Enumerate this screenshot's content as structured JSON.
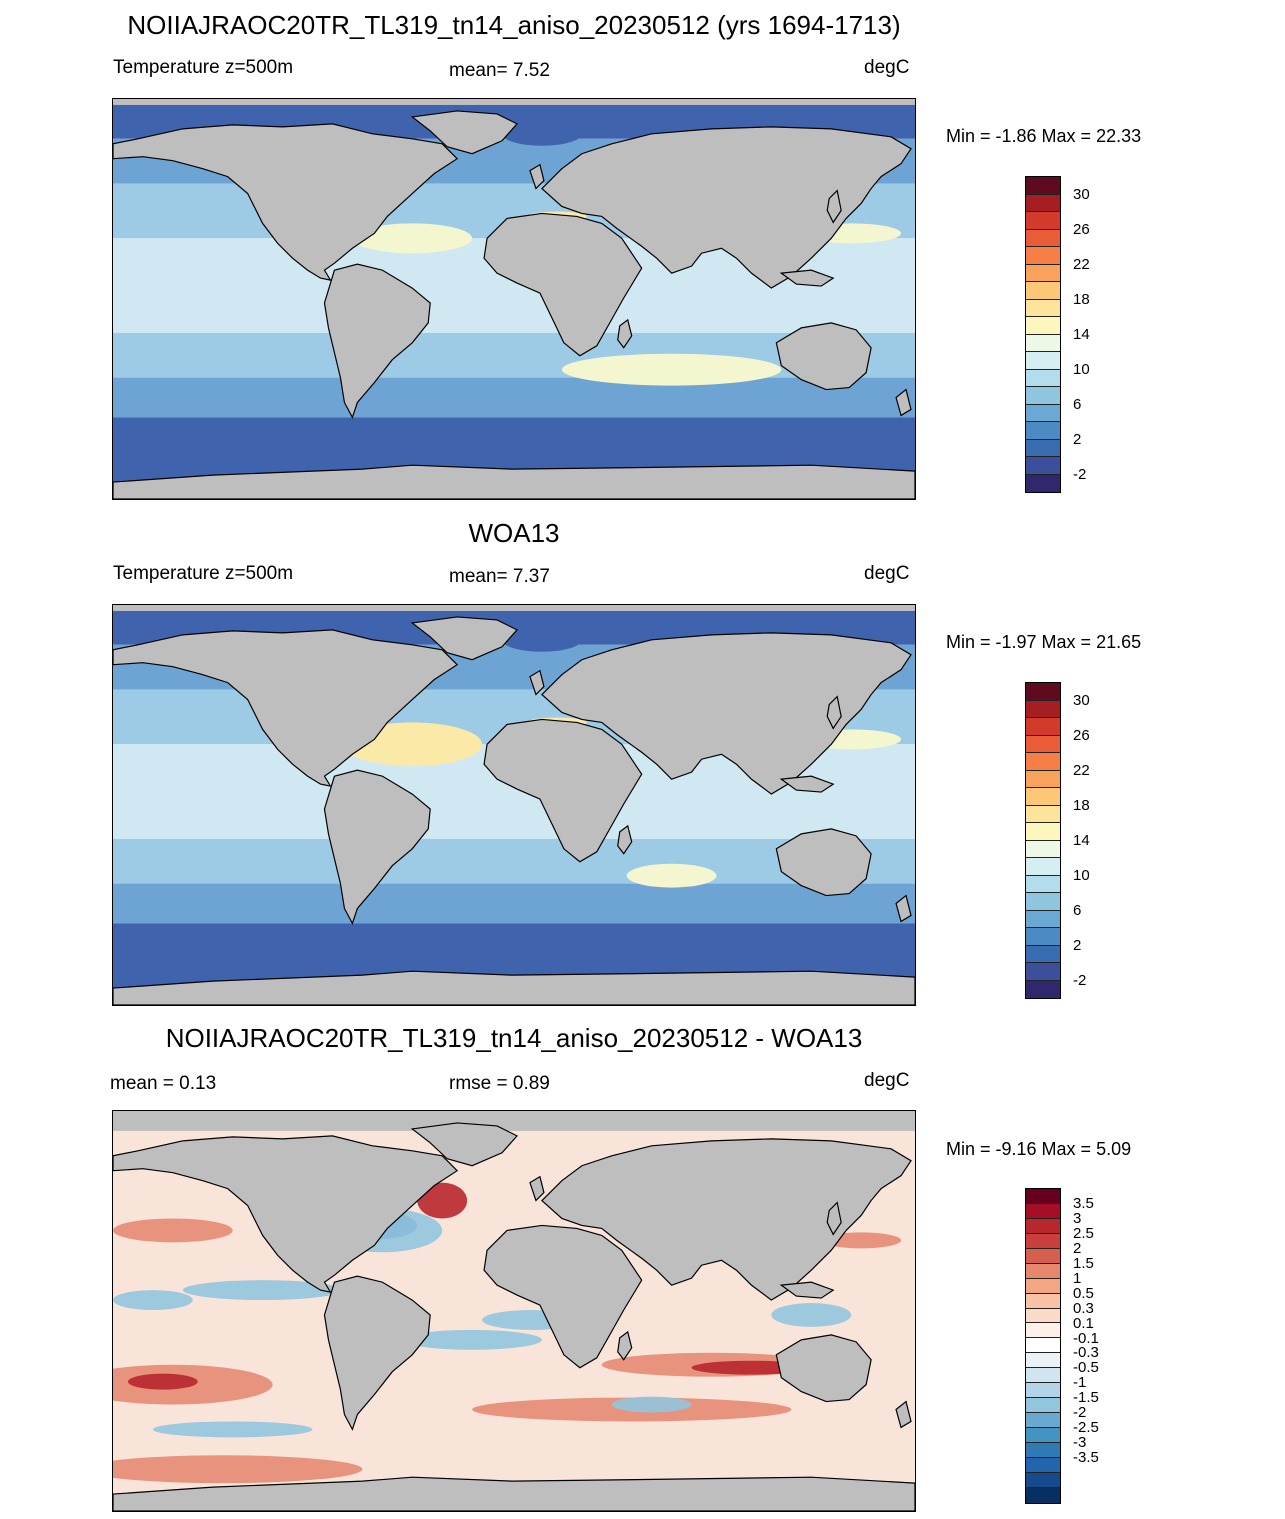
{
  "panels": [
    {
      "title": "NOIIAJRAOC20TR_TL319_tn14_aniso_20230512 (yrs 1694-1713)",
      "left_label": "Temperature z=500m",
      "center_label": "mean=   7.52",
      "unit": "degC",
      "minmax": "Min =  -1.86 Max =  22.33",
      "colorbar": {
        "colors": [
          "#5e0a1f",
          "#a41e22",
          "#d23a2a",
          "#ea5b37",
          "#f57f45",
          "#f9a25b",
          "#fcc777",
          "#fde49a",
          "#fdf6bd",
          "#eef8e6",
          "#d4eef2",
          "#b3dcec",
          "#8ec6e0",
          "#6aa9d3",
          "#4c8ac3",
          "#3a6cb1",
          "#3c4f9a",
          "#30286d"
        ],
        "ticks": [
          "30",
          "26",
          "22",
          "18",
          "14",
          "10",
          "6",
          "2",
          "-2"
        ]
      }
    },
    {
      "title": "WOA13",
      "left_label": "Temperature z=500m",
      "center_label": "mean=   7.37",
      "unit": "degC",
      "minmax": "Min =  -1.97 Max =  21.65",
      "colorbar": {
        "colors": [
          "#5e0a1f",
          "#a41e22",
          "#d23a2a",
          "#ea5b37",
          "#f57f45",
          "#f9a25b",
          "#fcc777",
          "#fde49a",
          "#fdf6bd",
          "#eef8e6",
          "#d4eef2",
          "#b3dcec",
          "#8ec6e0",
          "#6aa9d3",
          "#4c8ac3",
          "#3a6cb1",
          "#3c4f9a",
          "#30286d"
        ],
        "ticks": [
          "30",
          "26",
          "22",
          "18",
          "14",
          "10",
          "6",
          "2",
          "-2"
        ]
      }
    },
    {
      "title": "NOIIAJRAOC20TR_TL319_tn14_aniso_20230512 - WOA13",
      "left_label": "mean =   0.13",
      "center_label": "rmse =   0.89",
      "unit": "degC",
      "minmax": "Min =  -9.16 Max =   5.09",
      "colorbar": {
        "colors": [
          "#67001f",
          "#a50f26",
          "#b8262e",
          "#c93f3b",
          "#d6604d",
          "#e6866a",
          "#f4a582",
          "#f8c2a6",
          "#fbdbc7",
          "#fdf0e8",
          "#ffffff",
          "#eaf2f7",
          "#d1e5f0",
          "#b3d3e8",
          "#92c5de",
          "#6aa9cf",
          "#4393c3",
          "#2f79b5",
          "#2166ac",
          "#154b8c",
          "#053061"
        ],
        "ticks": [
          "3.5",
          "3",
          "2.5",
          "2",
          "1.5",
          "1",
          "0.5",
          "0.3",
          "0.1",
          "-0.1",
          "-0.3",
          "-0.5",
          "-1",
          "-1.5",
          "-2",
          "-2.5",
          "-3",
          "-3.5"
        ]
      }
    }
  ],
  "map_colors": {
    "land": "#bebebe",
    "coast": "#000000",
    "temperature_ocean": {
      "polar": "#3f64ad",
      "subpolar": "#6ea4d3",
      "mid": "#9dcbe6",
      "tropical": "#cfe8f2",
      "warm": "#f3f6cf",
      "warmest": "#fbe9a8"
    },
    "difference_ocean": {
      "base": "#f9e4da",
      "warm": "#e58a72",
      "hot": "#b8262e",
      "cool": "#92c5de",
      "cold": "#2166ac"
    }
  }
}
